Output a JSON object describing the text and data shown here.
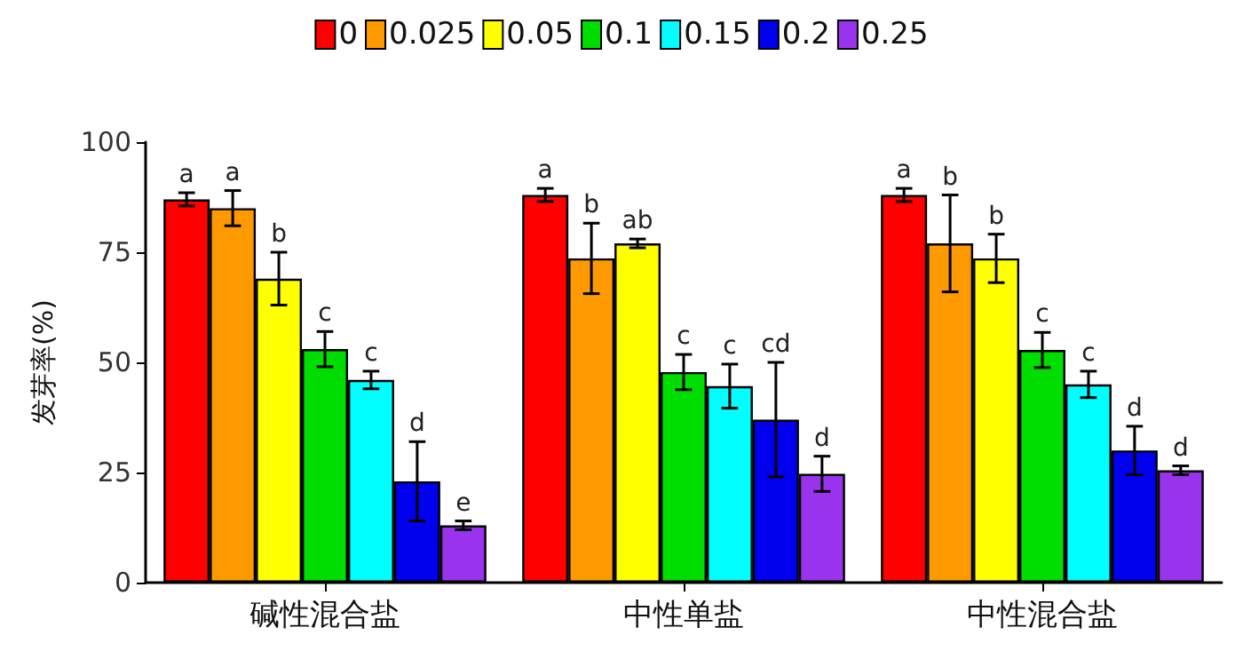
{
  "chart_data": {
    "type": "bar",
    "ylabel": "发芽率(%)",
    "categories": [
      "碱性混合盐",
      "中性单盐",
      "中性混合盐"
    ],
    "ylim": [
      0,
      100
    ],
    "yticks": [
      0,
      25,
      50,
      75,
      100
    ],
    "grid": false,
    "legend": "top",
    "series": [
      {
        "name": "0",
        "color": "#ff0000",
        "values": [
          87,
          88,
          88
        ],
        "errors": [
          1.5,
          1.5,
          1.5
        ],
        "value_labels": [
          "a",
          "a",
          "a"
        ]
      },
      {
        "name": "0.025",
        "color": "#ff9900",
        "values": [
          85,
          73.6,
          77
        ],
        "errors": [
          4,
          8,
          11
        ],
        "value_labels": [
          "a",
          "b",
          "b"
        ]
      },
      {
        "name": "0.05",
        "color": "#ffff00",
        "values": [
          69,
          77,
          73.6
        ],
        "errors": [
          6,
          1,
          5.5
        ],
        "value_labels": [
          "b",
          "ab",
          "b"
        ]
      },
      {
        "name": "0.1",
        "color": "#00dd00",
        "values": [
          53,
          47.8,
          52.8
        ],
        "errors": [
          4,
          4,
          4
        ],
        "value_labels": [
          "c",
          "c",
          "c"
        ]
      },
      {
        "name": "0.15",
        "color": "#00ffff",
        "values": [
          46,
          44.6,
          45
        ],
        "errors": [
          2,
          5,
          3
        ],
        "value_labels": [
          "c",
          "c",
          "c"
        ]
      },
      {
        "name": "0.2",
        "color": "#0000ee",
        "values": [
          23,
          37,
          30
        ],
        "errors": [
          9,
          13,
          5.5
        ],
        "value_labels": [
          "d",
          "cd",
          "d"
        ]
      },
      {
        "name": "0.25",
        "color": "#9933ee",
        "values": [
          13,
          24.7,
          25.5
        ],
        "errors": [
          1,
          4,
          1
        ],
        "value_labels": [
          "e",
          "d",
          "d"
        ]
      }
    ]
  }
}
